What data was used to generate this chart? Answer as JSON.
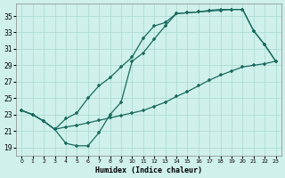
{
  "xlabel": "Humidex (Indice chaleur)",
  "background_color": "#cff0eb",
  "grid_color": "#a8d8d0",
  "line_color": "#1a6b5e",
  "x_ticks": [
    0,
    1,
    2,
    3,
    4,
    5,
    6,
    7,
    8,
    9,
    10,
    11,
    12,
    13,
    14,
    15,
    16,
    17,
    18,
    19,
    20,
    21,
    22,
    23
  ],
  "y_ticks": [
    19,
    21,
    23,
    25,
    27,
    29,
    31,
    33,
    35
  ],
  "xlim": [
    -0.5,
    23.5
  ],
  "ylim": [
    18.0,
    36.5
  ],
  "line1_x": [
    0,
    1,
    2,
    3,
    4,
    5,
    6,
    7,
    8,
    9,
    10,
    11,
    12,
    13,
    14,
    15,
    16,
    17,
    18,
    19,
    20,
    21,
    22,
    23
  ],
  "line1_y": [
    23.5,
    23.0,
    22.2,
    21.2,
    19.5,
    19.2,
    19.2,
    20.8,
    23.0,
    24.5,
    29.5,
    30.5,
    32.2,
    33.8,
    35.3,
    35.4,
    35.5,
    35.6,
    35.7,
    35.8,
    35.8,
    33.2,
    31.5,
    29.5
  ],
  "line2_x": [
    0,
    1,
    2,
    3,
    4,
    5,
    6,
    7,
    8,
    9,
    10,
    11,
    12,
    13,
    14,
    15,
    16,
    17,
    18,
    19,
    20,
    21,
    22,
    23
  ],
  "line2_y": [
    23.5,
    23.0,
    22.2,
    21.2,
    22.5,
    23.2,
    25.0,
    26.5,
    27.5,
    28.8,
    30.0,
    32.3,
    33.8,
    34.2,
    35.3,
    35.4,
    35.5,
    35.7,
    35.8,
    35.8,
    35.8,
    33.2,
    31.5,
    29.5
  ],
  "line3_x": [
    0,
    1,
    2,
    3,
    4,
    5,
    6,
    7,
    8,
    9,
    10,
    11,
    12,
    13,
    14,
    15,
    16,
    17,
    18,
    19,
    20,
    21,
    22,
    23
  ],
  "line3_y": [
    23.5,
    23.0,
    22.2,
    21.2,
    21.5,
    21.7,
    22.0,
    22.3,
    22.6,
    22.9,
    23.2,
    23.5,
    24.0,
    24.5,
    25.2,
    25.8,
    26.5,
    27.2,
    27.8,
    28.3,
    28.8,
    29.0,
    29.2,
    29.5
  ]
}
